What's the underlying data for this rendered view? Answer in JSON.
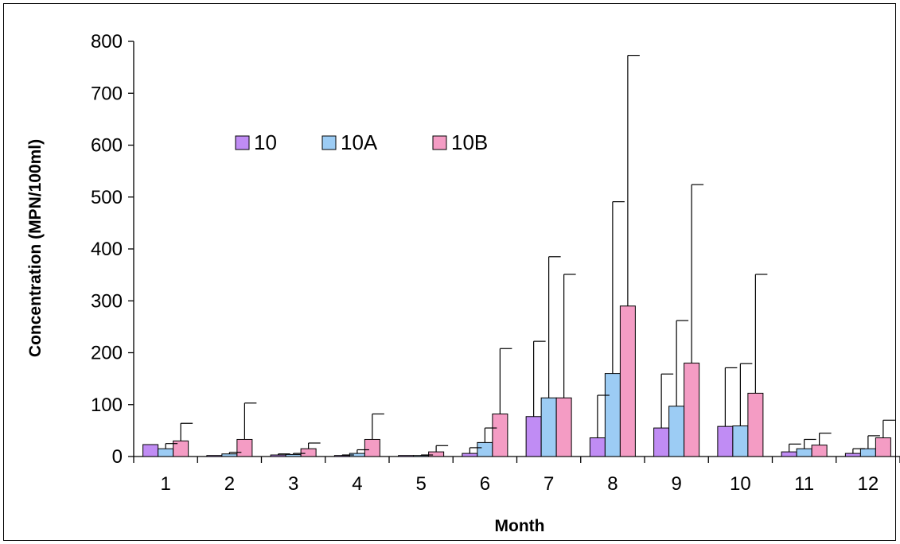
{
  "chart_data": {
    "type": "bar",
    "xlabel": "Month",
    "ylabel": "Concentration (MPN/100ml)",
    "ylim": [
      0,
      800
    ],
    "yticks": [
      "0",
      "100",
      "200",
      "300",
      "400",
      "500",
      "600",
      "700",
      "800"
    ],
    "categories": [
      "1",
      "2",
      "3",
      "4",
      "5",
      "6",
      "7",
      "8",
      "9",
      "10",
      "11",
      "12"
    ],
    "grid": false,
    "legend": "upper-left",
    "series": [
      {
        "name": "10",
        "color": "#c08cf4",
        "values": [
          23,
          2,
          3,
          2,
          2,
          6,
          77,
          36,
          55,
          58,
          9,
          6
        ],
        "error_upper": [
          0,
          0,
          5,
          3,
          2,
          17,
          222,
          118,
          159,
          171,
          24,
          15
        ]
      },
      {
        "name": "10A",
        "color": "#9cccf4",
        "values": [
          15,
          5,
          4,
          6,
          2,
          27,
          113,
          160,
          97,
          59,
          15,
          15
        ],
        "error_upper": [
          25,
          8,
          6,
          13,
          3,
          55,
          385,
          491,
          262,
          179,
          33,
          40
        ]
      },
      {
        "name": "10B",
        "color": "#f49cc4",
        "values": [
          30,
          33,
          15,
          33,
          9,
          82,
          113,
          290,
          180,
          122,
          22,
          36
        ],
        "error_upper": [
          64,
          103,
          26,
          82,
          21,
          208,
          351,
          773,
          524,
          351,
          45,
          70
        ]
      }
    ]
  }
}
